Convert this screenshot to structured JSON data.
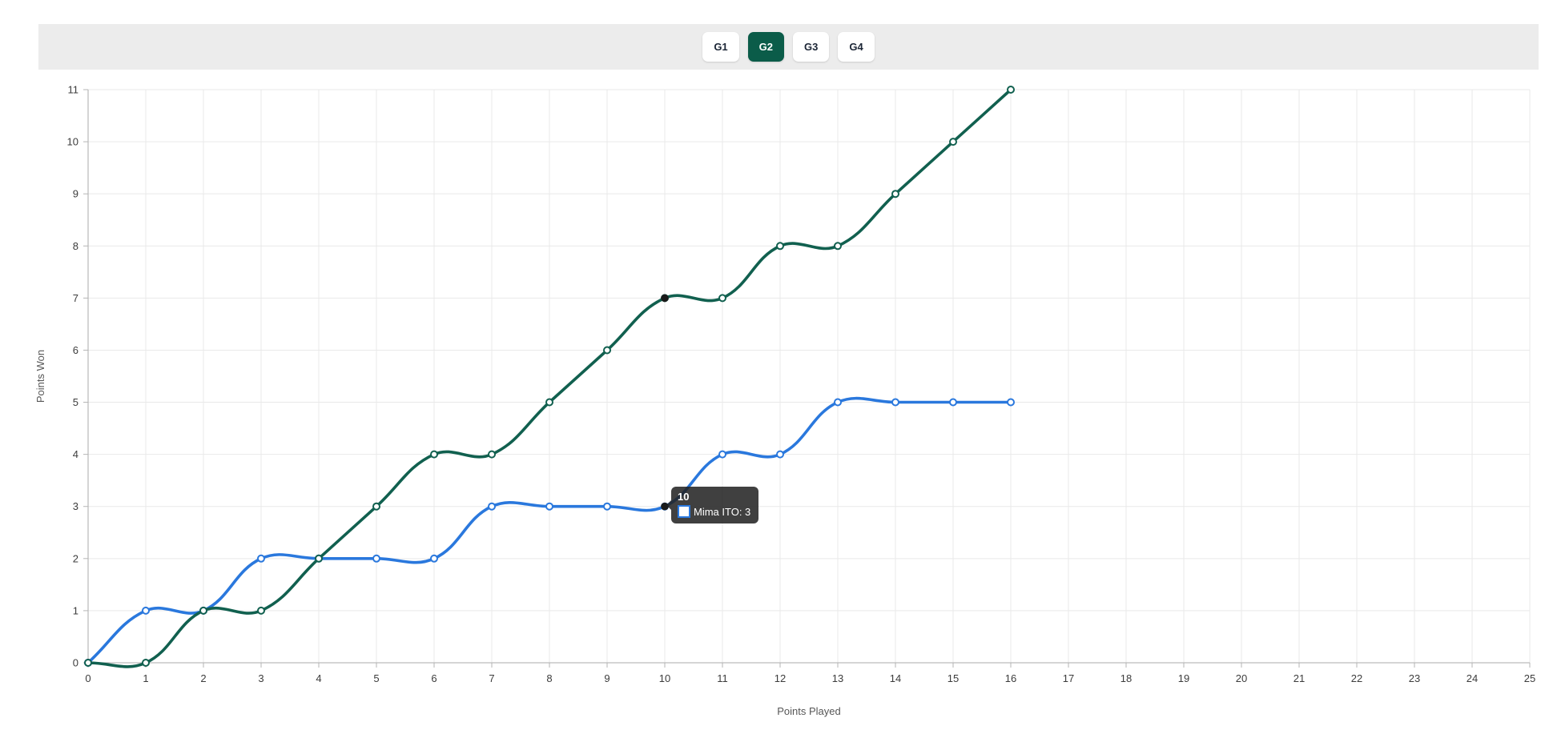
{
  "toolbar": {
    "tabs": [
      {
        "label": "G1",
        "active": false
      },
      {
        "label": "G2",
        "active": true
      },
      {
        "label": "G3",
        "active": false
      },
      {
        "label": "G4",
        "active": false
      }
    ]
  },
  "colors": {
    "active_tab_bg": "#0b5c49",
    "line_green": "#11604f",
    "line_blue": "#2a78dd",
    "tooltip_bg": "rgba(33,33,33,0.86)",
    "highlight_point": "#1a1a1a"
  },
  "tooltip": {
    "title": "10",
    "entry": "Mima ITO: 3",
    "series": "player-blue"
  },
  "chart_data": {
    "type": "line",
    "title": "",
    "xlabel": "Points Played",
    "ylabel": "Points Won",
    "xlim": [
      0,
      25
    ],
    "ylim": [
      0,
      11
    ],
    "xticks": [
      0,
      1,
      2,
      3,
      4,
      5,
      6,
      7,
      8,
      9,
      10,
      11,
      12,
      13,
      14,
      15,
      16,
      17,
      18,
      19,
      20,
      21,
      22,
      23,
      24,
      25
    ],
    "yticks": [
      0,
      1,
      2,
      3,
      4,
      5,
      6,
      7,
      8,
      9,
      10,
      11
    ],
    "grid": true,
    "legend_position": "none",
    "x": [
      0,
      1,
      2,
      3,
      4,
      5,
      6,
      7,
      8,
      9,
      10,
      11,
      12,
      13,
      14,
      15,
      16
    ],
    "series": [
      {
        "id": "player-blue",
        "name": "Mima ITO",
        "color": "#2a78dd",
        "values": [
          0,
          1,
          1,
          2,
          2,
          2,
          2,
          3,
          3,
          3,
          3,
          4,
          4,
          5,
          5,
          5,
          5
        ]
      },
      {
        "id": "player-green",
        "color": "#11604f",
        "values": [
          0,
          0,
          1,
          1,
          2,
          3,
          4,
          4,
          5,
          6,
          7,
          7,
          8,
          8,
          9,
          10,
          11
        ]
      }
    ],
    "highlight": {
      "x": 10,
      "points": [
        {
          "series": "player-blue",
          "y": 3
        },
        {
          "series": "player-green",
          "y": 7
        }
      ]
    }
  }
}
